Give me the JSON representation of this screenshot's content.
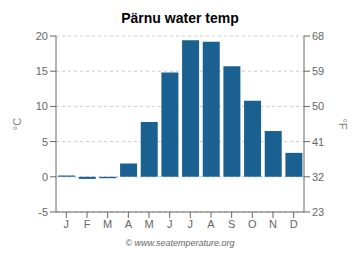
{
  "chart_data": {
    "type": "bar",
    "title": "Pärnu water temp",
    "categories": [
      "J",
      "F",
      "M",
      "A",
      "M",
      "J",
      "J",
      "A",
      "S",
      "O",
      "N",
      "D"
    ],
    "values": [
      0.2,
      -0.3,
      -0.2,
      1.9,
      7.8,
      14.8,
      19.4,
      19.2,
      15.7,
      10.8,
      6.5,
      3.4
    ],
    "ylabel": "°C",
    "y2label": "°F",
    "ylim": [
      -5,
      20
    ],
    "yticks": [
      -5,
      0,
      5,
      10,
      15,
      20
    ],
    "y2lim": [
      23,
      68
    ],
    "y2ticks": [
      23,
      32,
      41,
      50,
      59,
      68
    ],
    "color": "#1a6090",
    "grid": true,
    "annotations": [
      "© www.seatemperature.org"
    ]
  }
}
